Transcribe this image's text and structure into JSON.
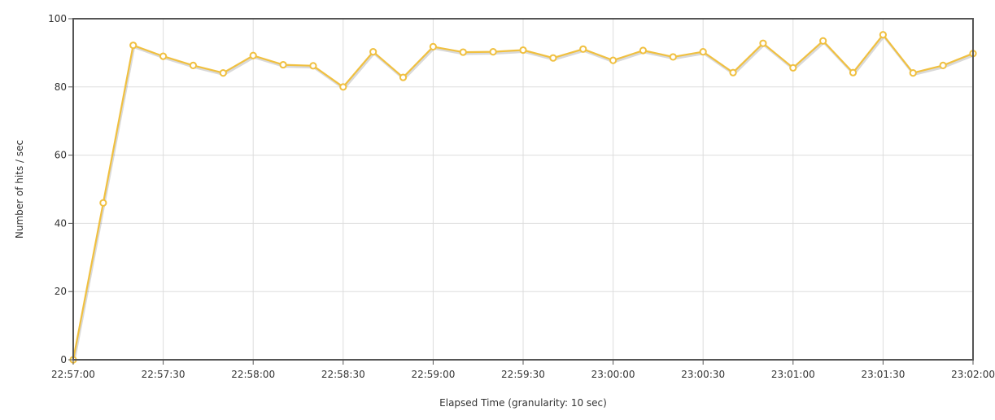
{
  "chart_data": {
    "type": "line",
    "title": "",
    "xlabel": "Elapsed Time (granularity: 10 sec)",
    "ylabel": "Number of hits / sec",
    "ylim": [
      0,
      100
    ],
    "y_ticks": [
      0,
      20,
      40,
      60,
      80,
      100
    ],
    "x_start": "22:57:00",
    "x_end": "23:02:00",
    "x_ticks": [
      "22:57:00",
      "22:57:30",
      "22:58:00",
      "22:58:30",
      "22:59:00",
      "22:59:30",
      "23:00:00",
      "23:00:30",
      "23:01:00",
      "23:01:30",
      "23:02:00"
    ],
    "grid": true,
    "legend": "none",
    "series": [
      {
        "color": "#f0c040",
        "x": [
          "22:57:00",
          "22:57:10",
          "22:57:20",
          "22:57:30",
          "22:57:40",
          "22:57:50",
          "22:58:00",
          "22:58:10",
          "22:58:20",
          "22:58:30",
          "22:58:40",
          "22:58:50",
          "22:59:00",
          "22:59:10",
          "22:59:20",
          "22:59:30",
          "22:59:40",
          "22:59:50",
          "23:00:00",
          "23:00:10",
          "23:00:20",
          "23:00:30",
          "23:00:40",
          "23:00:50",
          "23:01:00",
          "23:01:10",
          "23:01:20",
          "23:01:30",
          "23:01:40",
          "23:01:50",
          "23:02:00"
        ],
        "values": [
          0,
          46,
          92.2,
          89,
          86.3,
          84.1,
          89.2,
          86.5,
          86.2,
          80,
          90.3,
          82.8,
          91.8,
          90.2,
          90.3,
          90.8,
          88.5,
          91.1,
          87.8,
          90.7,
          88.8,
          90.3,
          84.2,
          92.8,
          85.6,
          93.5,
          84.2,
          95.3,
          84.1,
          86.3,
          89.8
        ]
      }
    ]
  }
}
